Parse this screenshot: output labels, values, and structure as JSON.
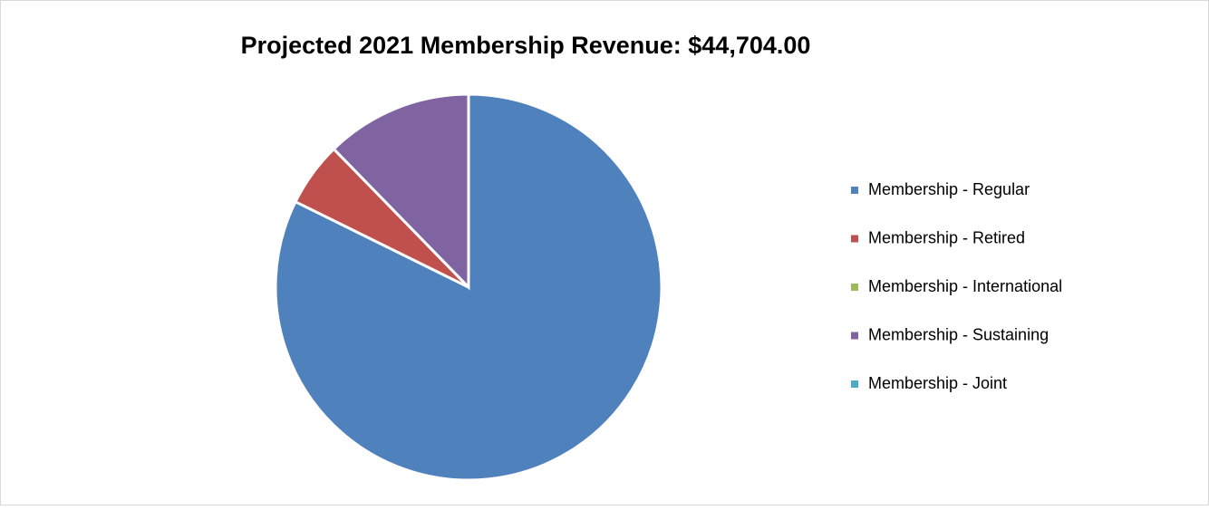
{
  "chart_data": {
    "type": "pie",
    "title": "Projected 2021 Membership Revenue: $44,704.00",
    "categories": [
      "Membership - Regular",
      "Membership - Retired",
      "Membership - International",
      "Membership - Sustaining",
      "Membership - Joint"
    ],
    "values": [
      82.3,
      5.4,
      0,
      12.3,
      0
    ],
    "colors": [
      "#4f81bd",
      "#c0504d",
      "#9bbb59",
      "#8064a2",
      "#4bacc6"
    ],
    "legend": "right"
  }
}
